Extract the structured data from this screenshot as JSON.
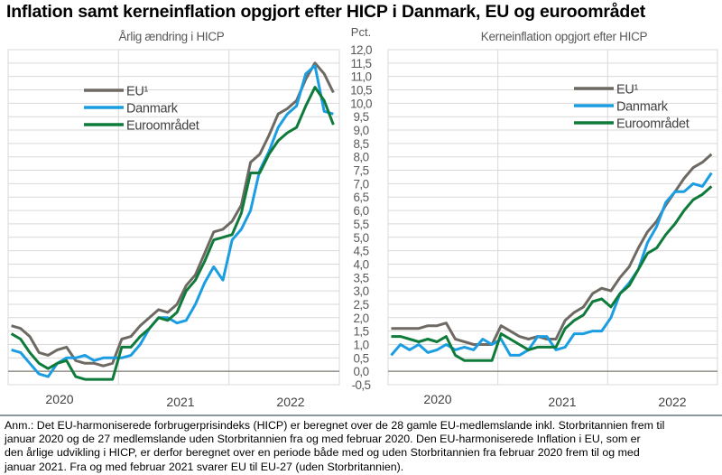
{
  "title": "Inflation samt kerneinflation opgjort efter HICP i Danmark, EU og euroområdet",
  "y_unit_label": "Pct.",
  "note_lines": [
    "Anm.: Det EU-harmoniserede forbrugerprisindeks (HICP) er beregnet over de 28 gamle EU-medlemslande inkl. Storbritannien frem til",
    "januar 2020 og de 27 medlemslande uden Storbritannien fra og med februar 2020. Den EU-harmoniserede Inflation i EU, som er",
    "den årlige udvikling i HICP, er derfor beregnet over en periode både med og uden Storbritannien fra februar 2020 frem til og med",
    "januar 2021. Fra og med februar 2021 svarer EU til EU-27 (uden Storbritannien)."
  ],
  "colors": {
    "EU": "#6e6a63",
    "Danmark": "#1b9de2",
    "Euroomraadet": "#0f7b3b",
    "grid": "#d9d9d9",
    "zero": "#7d7870"
  },
  "chart_data": [
    {
      "type": "line",
      "title": "Årlig ændring i HICP",
      "x_start": "2020-01",
      "x_end": "2022-12",
      "frequency": "monthly",
      "x_tick_labels": [
        "2020",
        "2021",
        "2022"
      ],
      "ylim": [
        -0.5,
        12.0
      ],
      "y_step": 0.5,
      "ylabel": "Pct.",
      "y_tick_labels": [
        "-0,5",
        "0,0",
        "0,5",
        "1,0",
        "1,5",
        "2,0",
        "2,5",
        "3,0",
        "3,5",
        "4,0",
        "4,5",
        "5,0",
        "5,5",
        "6,0",
        "6,5",
        "7,0",
        "7,5",
        "8,0",
        "8,5",
        "9,0",
        "9,5",
        "10,0",
        "10,5",
        "11,0",
        "11,5",
        "12,0"
      ],
      "grid": true,
      "legend_placement": "top-left",
      "series": [
        {
          "name": "EU¹",
          "color": "#6e6a63",
          "values": [
            1.7,
            1.6,
            1.3,
            0.7,
            0.6,
            0.8,
            0.9,
            0.4,
            0.3,
            0.3,
            0.2,
            0.3,
            1.2,
            1.3,
            1.7,
            2.0,
            2.3,
            2.2,
            2.5,
            3.2,
            3.6,
            4.4,
            5.2,
            5.3,
            5.6,
            6.2,
            7.8,
            8.1,
            8.8,
            9.6,
            9.8,
            10.1,
            10.9,
            11.5,
            11.1,
            10.4
          ]
        },
        {
          "name": "Danmark",
          "color": "#1b9de2",
          "values": [
            0.8,
            0.7,
            0.3,
            -0.1,
            -0.2,
            0.3,
            0.5,
            0.5,
            0.6,
            0.4,
            0.5,
            0.5,
            0.5,
            0.6,
            1.0,
            1.6,
            2.0,
            2.0,
            1.8,
            1.9,
            2.5,
            3.3,
            3.9,
            3.4,
            4.9,
            5.3,
            6.0,
            7.5,
            8.2,
            9.1,
            9.6,
            9.9,
            11.1,
            11.4,
            9.7,
            9.6
          ]
        },
        {
          "name": "Euroområdet",
          "color": "#0f7b3b",
          "values": [
            1.4,
            1.2,
            0.7,
            0.3,
            0.1,
            0.3,
            0.4,
            -0.2,
            -0.3,
            -0.3,
            -0.3,
            -0.3,
            0.9,
            0.9,
            1.3,
            1.6,
            2.0,
            1.9,
            2.2,
            3.0,
            3.4,
            4.1,
            4.9,
            5.0,
            5.1,
            5.9,
            7.4,
            7.4,
            8.1,
            8.6,
            8.9,
            9.1,
            9.9,
            10.6,
            10.1,
            9.2
          ]
        }
      ]
    },
    {
      "type": "line",
      "title": "Kerneinflation opgjort efter HICP",
      "x_start": "2020-01",
      "x_end": "2022-12",
      "frequency": "monthly",
      "x_tick_labels": [
        "2020",
        "2021",
        "2022"
      ],
      "ylim": [
        -0.5,
        12.0
      ],
      "y_step": 0.5,
      "ylabel": "Pct.",
      "grid": true,
      "legend_placement": "top-right",
      "series": [
        {
          "name": "EU¹",
          "color": "#6e6a63",
          "values": [
            1.6,
            1.6,
            1.6,
            1.6,
            1.7,
            1.7,
            1.8,
            1.2,
            1.1,
            1.0,
            1.0,
            1.0,
            1.7,
            1.5,
            1.3,
            1.2,
            1.3,
            1.2,
            1.2,
            1.9,
            2.2,
            2.4,
            2.9,
            3.1,
            3.0,
            3.5,
            3.9,
            4.6,
            5.2,
            5.6,
            6.2,
            6.7,
            7.2,
            7.6,
            7.8,
            8.1
          ]
        },
        {
          "name": "Danmark",
          "color": "#1b9de2",
          "values": [
            0.6,
            1.0,
            0.8,
            1.0,
            0.7,
            0.8,
            1.0,
            0.8,
            0.9,
            0.8,
            1.2,
            1.0,
            1.2,
            0.6,
            0.6,
            0.8,
            1.3,
            1.3,
            0.8,
            0.9,
            1.4,
            1.4,
            1.5,
            1.5,
            2.0,
            2.9,
            3.3,
            3.8,
            4.8,
            5.4,
            6.3,
            6.7,
            6.7,
            7.0,
            6.9,
            7.4
          ]
        },
        {
          "name": "Euroområdet",
          "color": "#0f7b3b",
          "values": [
            1.3,
            1.3,
            1.2,
            1.1,
            1.2,
            1.1,
            1.3,
            0.6,
            0.4,
            0.4,
            0.4,
            0.4,
            1.4,
            1.2,
            1.0,
            0.8,
            0.9,
            0.9,
            0.9,
            1.6,
            1.9,
            2.1,
            2.6,
            2.7,
            2.4,
            2.9,
            3.2,
            3.8,
            4.4,
            4.6,
            5.1,
            5.5,
            6.0,
            6.4,
            6.6,
            6.9
          ]
        }
      ]
    }
  ]
}
